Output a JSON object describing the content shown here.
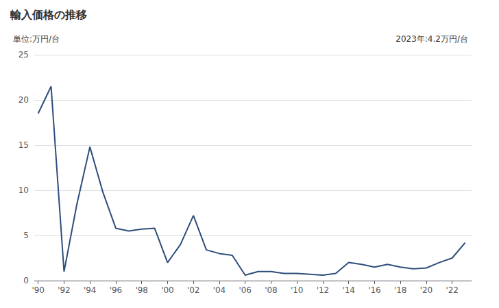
{
  "chart_data": {
    "type": "line",
    "title": "輸入価格の推移",
    "ylabel": "単位:万円/台",
    "annotation": "2023年:4.2万円/台",
    "x": [
      1990,
      1991,
      1992,
      1993,
      1994,
      1995,
      1996,
      1997,
      1998,
      1999,
      2000,
      2001,
      2002,
      2003,
      2004,
      2005,
      2006,
      2007,
      2008,
      2009,
      2010,
      2011,
      2012,
      2013,
      2014,
      2015,
      2016,
      2017,
      2018,
      2019,
      2020,
      2021,
      2022,
      2023
    ],
    "values": [
      18.5,
      21.5,
      1.0,
      8.5,
      14.8,
      9.8,
      5.8,
      5.5,
      5.7,
      5.8,
      2.0,
      4.0,
      7.2,
      3.4,
      3.0,
      2.8,
      0.6,
      1.0,
      1.0,
      0.8,
      0.8,
      0.7,
      0.6,
      0.8,
      2.0,
      1.8,
      1.5,
      1.8,
      1.5,
      1.3,
      1.4,
      2.0,
      2.5,
      4.2
    ],
    "color": "#2e4d7b",
    "xlim": [
      1989.7,
      2023.5
    ],
    "xticks": [
      {
        "value": 1990,
        "label": "'90"
      },
      {
        "value": 1992,
        "label": "'92"
      },
      {
        "value": 1994,
        "label": "'94"
      },
      {
        "value": 1996,
        "label": "'96"
      },
      {
        "value": 1998,
        "label": "'98"
      },
      {
        "value": 2000,
        "label": "'00"
      },
      {
        "value": 2002,
        "label": "'02"
      },
      {
        "value": 2004,
        "label": "'04"
      },
      {
        "value": 2006,
        "label": "'06"
      },
      {
        "value": 2008,
        "label": "'08"
      },
      {
        "value": 2010,
        "label": "'10"
      },
      {
        "value": 2012,
        "label": "'12"
      },
      {
        "value": 2014,
        "label": "'14"
      },
      {
        "value": 2016,
        "label": "'16"
      },
      {
        "value": 2018,
        "label": "'18"
      },
      {
        "value": 2020,
        "label": "'20"
      },
      {
        "value": 2022,
        "label": "'22"
      }
    ],
    "ylim": [
      0,
      25
    ],
    "yticks": [
      0,
      5,
      10,
      15,
      20,
      25
    ],
    "grid": true
  }
}
